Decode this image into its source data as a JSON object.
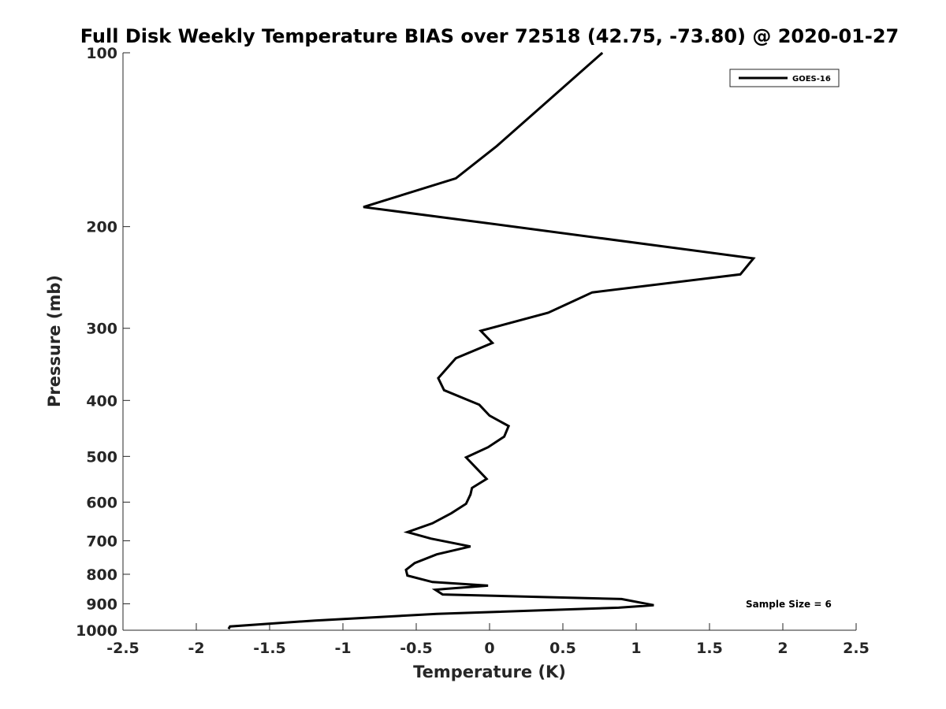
{
  "chart_data": {
    "type": "line",
    "title": "Full Disk Weekly Temperature BIAS over 72518 (42.75, -73.80) @ 2020-01-27",
    "xlabel": "Temperature (K)",
    "ylabel": "Pressure (mb)",
    "xlim": [
      -2.5,
      2.5
    ],
    "ylim": [
      100,
      1000
    ],
    "y_scale": "log",
    "y_reversed": true,
    "grid": false,
    "legend_position": "top-right",
    "annotation": "Sample Size = 6",
    "x_ticks": [
      "-2.5",
      "-2",
      "-1.5",
      "-1",
      "-0.5",
      "0",
      "0.5",
      "1",
      "1.5",
      "2",
      "2.5"
    ],
    "y_ticks": [
      "100",
      "200",
      "300",
      "400",
      "500",
      "600",
      "700",
      "800",
      "900",
      "1000"
    ],
    "series": [
      {
        "name": "GOES-16",
        "color": "#000000",
        "points": [
          {
            "x": 0.77,
            "y": 100
          },
          {
            "x": 0.05,
            "y": 145
          },
          {
            "x": -0.23,
            "y": 165
          },
          {
            "x": -0.86,
            "y": 185
          },
          {
            "x": 0.1,
            "y": 199
          },
          {
            "x": 1.8,
            "y": 227
          },
          {
            "x": 1.71,
            "y": 242
          },
          {
            "x": 0.7,
            "y": 260
          },
          {
            "x": 0.4,
            "y": 282
          },
          {
            "x": -0.06,
            "y": 303
          },
          {
            "x": 0.02,
            "y": 318
          },
          {
            "x": -0.23,
            "y": 338
          },
          {
            "x": -0.35,
            "y": 366
          },
          {
            "x": -0.31,
            "y": 384
          },
          {
            "x": -0.07,
            "y": 407
          },
          {
            "x": 0.0,
            "y": 425
          },
          {
            "x": 0.13,
            "y": 443
          },
          {
            "x": 0.1,
            "y": 462
          },
          {
            "x": -0.01,
            "y": 482
          },
          {
            "x": -0.16,
            "y": 502
          },
          {
            "x": -0.09,
            "y": 524
          },
          {
            "x": -0.02,
            "y": 547
          },
          {
            "x": -0.12,
            "y": 567
          },
          {
            "x": -0.13,
            "y": 582
          },
          {
            "x": -0.16,
            "y": 604
          },
          {
            "x": -0.26,
            "y": 627
          },
          {
            "x": -0.39,
            "y": 653
          },
          {
            "x": -0.56,
            "y": 676
          },
          {
            "x": -0.4,
            "y": 694
          },
          {
            "x": -0.13,
            "y": 716
          },
          {
            "x": -0.36,
            "y": 739
          },
          {
            "x": -0.51,
            "y": 765
          },
          {
            "x": -0.57,
            "y": 786
          },
          {
            "x": -0.56,
            "y": 804
          },
          {
            "x": -0.39,
            "y": 825
          },
          {
            "x": -0.01,
            "y": 837
          },
          {
            "x": -0.3,
            "y": 848
          },
          {
            "x": -0.37,
            "y": 851
          },
          {
            "x": -0.32,
            "y": 867
          },
          {
            "x": 0.9,
            "y": 883
          },
          {
            "x": 1.12,
            "y": 905
          },
          {
            "x": 0.88,
            "y": 914
          },
          {
            "x": -0.36,
            "y": 937
          },
          {
            "x": -1.19,
            "y": 962
          },
          {
            "x": -1.77,
            "y": 985
          },
          {
            "x": -1.78,
            "y": 995
          }
        ]
      }
    ]
  }
}
